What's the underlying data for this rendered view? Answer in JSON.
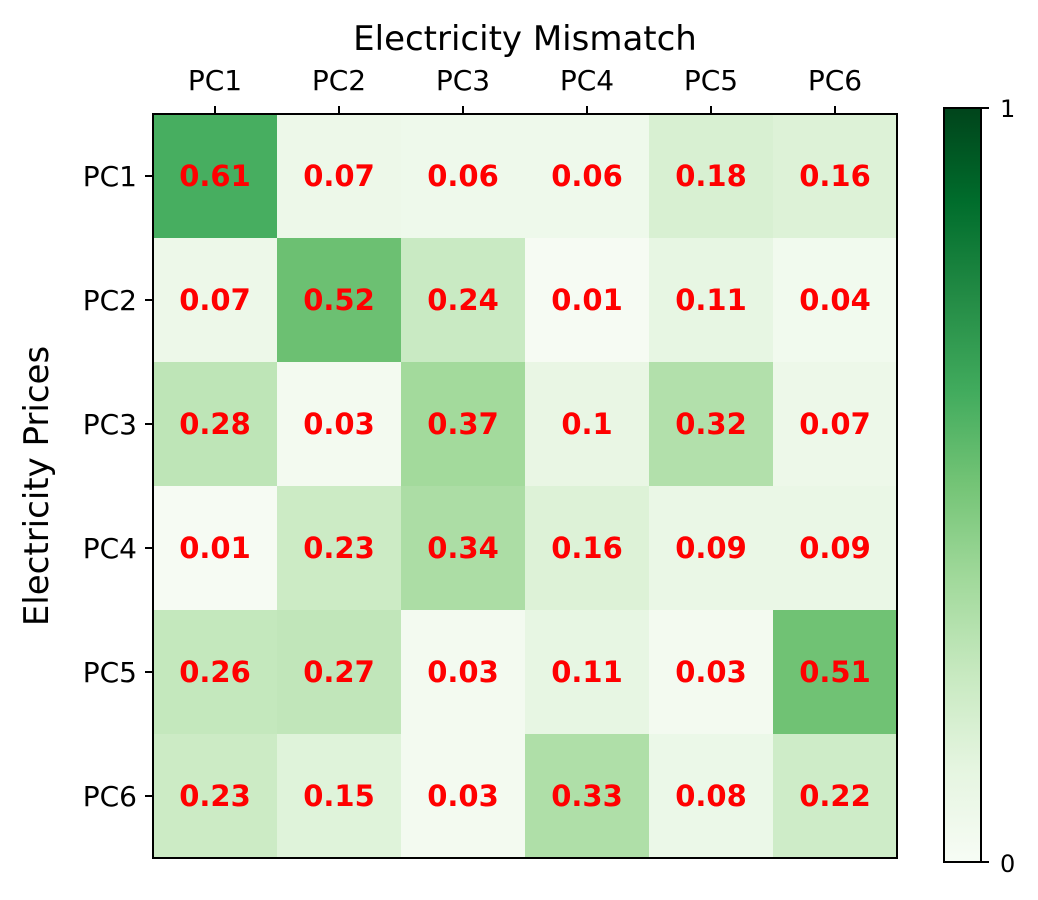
{
  "chart_data": {
    "type": "heatmap",
    "title": "Electricity Mismatch",
    "ylabel": "Electricity Prices",
    "x_categories": [
      "PC1",
      "PC2",
      "PC3",
      "PC4",
      "PC5",
      "PC6"
    ],
    "y_categories": [
      "PC1",
      "PC2",
      "PC3",
      "PC4",
      "PC5",
      "PC6"
    ],
    "values": [
      [
        0.61,
        0.07,
        0.06,
        0.06,
        0.18,
        0.16
      ],
      [
        0.07,
        0.52,
        0.24,
        0.01,
        0.11,
        0.04
      ],
      [
        0.28,
        0.03,
        0.37,
        0.1,
        0.32,
        0.07
      ],
      [
        0.01,
        0.23,
        0.34,
        0.16,
        0.09,
        0.09
      ],
      [
        0.26,
        0.27,
        0.03,
        0.11,
        0.03,
        0.51
      ],
      [
        0.23,
        0.15,
        0.03,
        0.33,
        0.08,
        0.22
      ]
    ],
    "value_labels": [
      [
        "0.61",
        "0.07",
        "0.06",
        "0.06",
        "0.18",
        "0.16"
      ],
      [
        "0.07",
        "0.52",
        "0.24",
        "0.01",
        "0.11",
        "0.04"
      ],
      [
        "0.28",
        "0.03",
        "0.37",
        "0.1",
        "0.32",
        "0.07"
      ],
      [
        "0.01",
        "0.23",
        "0.34",
        "0.16",
        "0.09",
        "0.09"
      ],
      [
        "0.26",
        "0.27",
        "0.03",
        "0.11",
        "0.03",
        "0.51"
      ],
      [
        "0.23",
        "0.15",
        "0.03",
        "0.33",
        "0.08",
        "0.22"
      ]
    ],
    "colorbar": {
      "min": 0,
      "max": 1,
      "tick_labels": [
        "1",
        "0"
      ]
    },
    "colormap": "Greens",
    "label_color": "#ff0000",
    "x_axis_position": "top",
    "grid": false
  }
}
